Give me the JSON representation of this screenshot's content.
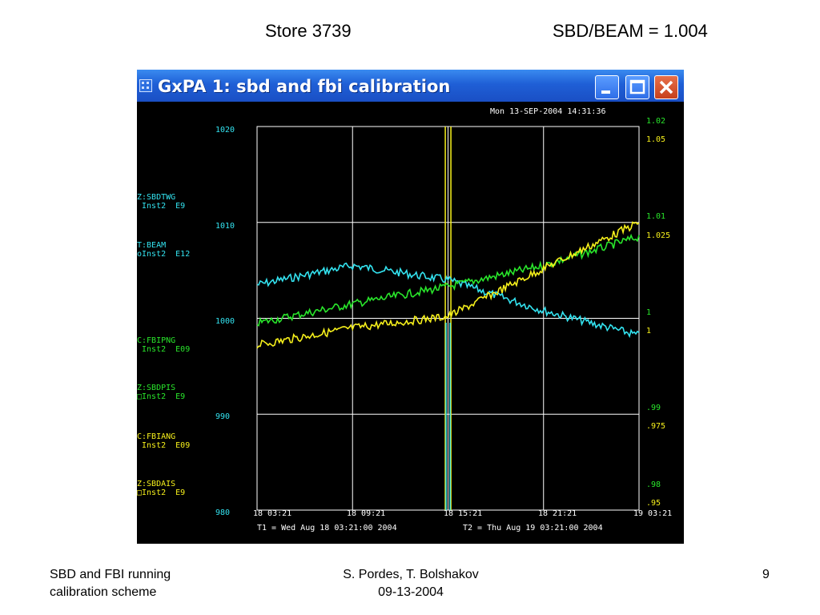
{
  "slide": {
    "title_left": "Store 3739",
    "title_right": "SBD/BEAM = 1.004",
    "footer_left_line1": "SBD and FBI running",
    "footer_left_line2": "calibration scheme",
    "footer_center_line1": "S. Pordes, T. Bolshakov",
    "footer_center_line2": "09-13-2004",
    "page_number": "9"
  },
  "window": {
    "title": "GxPA 1: sbd and fbi calibration",
    "app_icon": "grid-app-icon",
    "buttons": [
      "minimize-icon",
      "maximize-icon",
      "close-icon"
    ],
    "titlebar_color": "#1f5fd6"
  },
  "plot": {
    "timestamp": "Mon 13-SEP-2004 14:31:36",
    "left_axis_ticks": [
      "1020",
      "1010",
      "1000",
      "990",
      "980"
    ],
    "right_axis_green_ticks": [
      "1.02",
      "1.01",
      "1",
      ".99",
      ".98"
    ],
    "right_axis_yellow_ticks": [
      "1.05",
      "1.025",
      "1",
      ".975",
      ".95"
    ],
    "x_ticks": [
      "18 03:21",
      "18 09:21",
      "18 15:21",
      "18 21:21",
      "19 03:21"
    ],
    "t1": "T1 = Wed Aug 18 03:21:00 2004",
    "t2": "T2 = Thu Aug 19 03:21:00 2004",
    "legend": [
      {
        "line1": "Z:SBDTWG",
        "line2": " Inst2  E9",
        "color": "#33e3f0"
      },
      {
        "line1": "T:BEAM",
        "line2": "oInst2  E12",
        "color": "#33e3f0"
      },
      {
        "line1": "C:FBIPNG",
        "line2": " Inst2  E09",
        "color": "#29e62b"
      },
      {
        "line1": "Z:SBDPIS",
        "line2": "□Inst2  E9",
        "color": "#29e62b"
      },
      {
        "line1": "C:FBIANG",
        "line2": " Inst2  E09",
        "color": "#f6f01b"
      },
      {
        "line1": "Z:SBDAIS",
        "line2": "□Inst2  E9",
        "color": "#f6f01b"
      }
    ],
    "colors": {
      "cyan": "#33e3f0",
      "green": "#29e62b",
      "yellow": "#f6f01b",
      "grid": "#ffffff"
    }
  },
  "chart_data": {
    "type": "line",
    "x": [
      "18 03:21",
      "18 09:21",
      "18 15:21",
      "18 21:21",
      "19 03:21"
    ],
    "series": [
      {
        "name": "T:BEAM",
        "axis": "left",
        "values": [
          1003.5,
          1005.5,
          1004.0,
          1000.8,
          998.2
        ]
      },
      {
        "name": "C:FBIPNG",
        "axis": "green-right",
        "values": [
          0.9995,
          1.0015,
          1.0033,
          1.0055,
          1.0085
        ]
      },
      {
        "name": "C:FBIANG",
        "axis": "yellow-right",
        "values": [
          0.993,
          0.9975,
          1.0005,
          1.013,
          1.025
        ]
      }
    ],
    "ylim_left": [
      980,
      1020
    ],
    "ylim_green": [
      0.98,
      1.02
    ],
    "ylim_yellow": [
      0.95,
      1.05
    ],
    "grid": true
  }
}
